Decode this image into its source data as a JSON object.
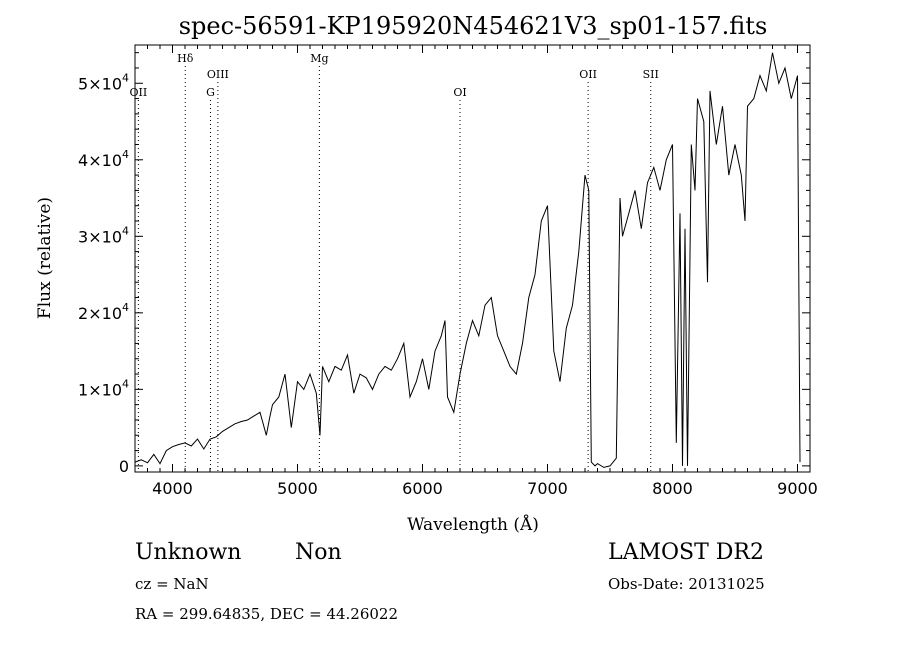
{
  "chart_data": {
    "type": "line",
    "title": "spec-56591-KP195920N454621V3_sp01-157.fits",
    "xlabel": "Wavelength (Å)",
    "ylabel": "Flux (relative)",
    "xlim": [
      3700,
      9100
    ],
    "ylim": [
      -800,
      55000
    ],
    "x_ticks": [
      4000,
      5000,
      6000,
      7000,
      8000,
      9000
    ],
    "y_ticks": [
      {
        "value": 0,
        "mantissa": "0",
        "exp": ""
      },
      {
        "value": 10000,
        "mantissa": "1×10",
        "exp": "4"
      },
      {
        "value": 20000,
        "mantissa": "2×10",
        "exp": "4"
      },
      {
        "value": 30000,
        "mantissa": "3×10",
        "exp": "4"
      },
      {
        "value": 40000,
        "mantissa": "4×10",
        "exp": "4"
      },
      {
        "value": 50000,
        "mantissa": "5×10",
        "exp": "4"
      }
    ],
    "lines": [
      {
        "label": "OII",
        "x": 3727,
        "row": 3
      },
      {
        "label": "Hδ",
        "x": 4102,
        "row": 1
      },
      {
        "label": "G",
        "x": 4304,
        "row": 3
      },
      {
        "label": "OIII",
        "x": 4363,
        "row": 2
      },
      {
        "label": "Mg",
        "x": 5175,
        "row": 1
      },
      {
        "label": "OI",
        "x": 6300,
        "row": 3
      },
      {
        "label": "OII",
        "x": 7325,
        "row": 2
      },
      {
        "label": "SII",
        "x": 7826,
        "row": 2
      }
    ],
    "series": [
      {
        "x": [
          3700,
          3750,
          3800,
          3850,
          3900,
          3950,
          4000,
          4050,
          4100,
          4150,
          4200,
          4250,
          4300,
          4350,
          4400,
          4450,
          4500,
          4550,
          4600,
          4650,
          4700,
          4750,
          4780,
          4800,
          4850,
          4900,
          4950,
          5000,
          5050,
          5100,
          5150,
          5180,
          5200,
          5250,
          5300,
          5350,
          5400,
          5450,
          5500,
          5550,
          5600,
          5650,
          5700,
          5750,
          5800,
          5850,
          5900,
          5950,
          6000,
          6050,
          6100,
          6150,
          6180,
          6200,
          6250,
          6300,
          6350,
          6400,
          6450,
          6500,
          6550,
          6600,
          6650,
          6700,
          6750,
          6800,
          6850,
          6900,
          6950,
          7000,
          7050,
          7100,
          7150,
          7200,
          7250,
          7300,
          7330,
          7350,
          7380,
          7400,
          7450,
          7500,
          7550,
          7580,
          7600,
          7650,
          7700,
          7750,
          7800,
          7850,
          7900,
          7950,
          8000,
          8030,
          8060,
          8080,
          8100,
          8120,
          8150,
          8180,
          8200,
          8250,
          8280,
          8300,
          8350,
          8400,
          8450,
          8500,
          8550,
          8580,
          8600,
          8650,
          8700,
          8750,
          8800,
          8850,
          8900,
          8950,
          9000,
          9020
        ],
        "y": [
          500,
          800,
          400,
          1500,
          300,
          2000,
          2500,
          2800,
          3000,
          2600,
          3500,
          2200,
          3500,
          3800,
          4500,
          5000,
          5500,
          5800,
          6000,
          6500,
          7000,
          4000,
          6500,
          8000,
          9000,
          12000,
          5000,
          11000,
          10000,
          12000,
          9500,
          4000,
          13000,
          11000,
          13000,
          12500,
          14500,
          9500,
          12000,
          11500,
          10000,
          12000,
          13000,
          12500,
          14000,
          16000,
          9000,
          11000,
          14000,
          10000,
          15000,
          17000,
          19000,
          9000,
          7000,
          12000,
          16000,
          19000,
          17000,
          21000,
          22000,
          17000,
          15000,
          13000,
          12000,
          16000,
          22000,
          25000,
          32000,
          34000,
          15000,
          11000,
          18000,
          21000,
          28000,
          38000,
          36000,
          500,
          0,
          300,
          -200,
          0,
          1000,
          35000,
          30000,
          33000,
          36000,
          31000,
          37000,
          39000,
          36000,
          40000,
          42000,
          3000,
          33000,
          0,
          31000,
          0,
          42000,
          36000,
          48000,
          45000,
          24000,
          49000,
          42000,
          47000,
          38000,
          42000,
          38000,
          32000,
          47000,
          48000,
          51000,
          49000,
          54000,
          50000,
          52000,
          48000,
          51000,
          500
        ]
      }
    ]
  },
  "info": {
    "class_label": "Unknown",
    "subclass_label": "Non",
    "survey": "LAMOST DR2",
    "redshift": "cz = NaN",
    "obs_date": "Obs-Date: 20131025",
    "coords": "RA = 299.64835, DEC =  44.26022"
  }
}
